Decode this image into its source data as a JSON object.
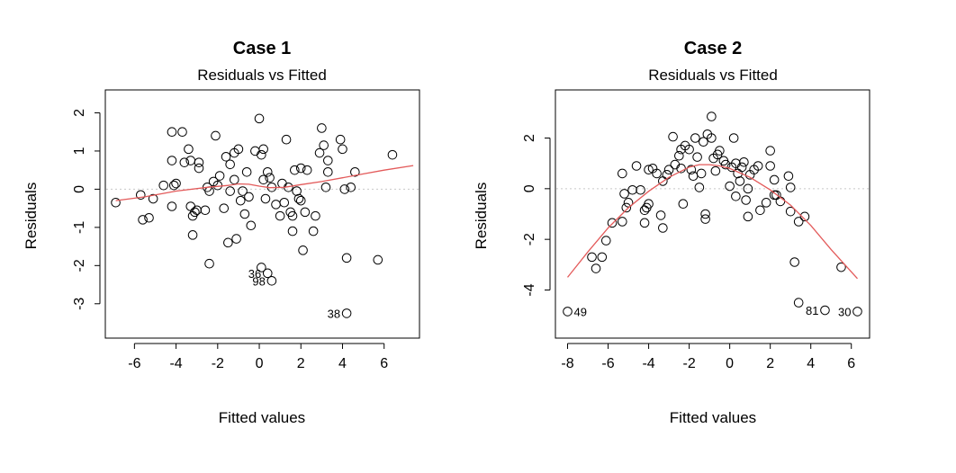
{
  "chart_data": [
    {
      "type": "scatter",
      "title": "Case 1",
      "subtitle": "Residuals vs Fitted",
      "xlabel": "Fitted values",
      "ylabel": "Residuals",
      "xlim": [
        -7.4,
        7.7
      ],
      "ylim": [
        -3.9,
        2.6
      ],
      "xticks": [
        "-6",
        "-4",
        "-2",
        "0",
        "2",
        "4",
        "6"
      ],
      "xtick_values": [
        -6,
        -4,
        -2,
        0,
        2,
        4,
        6
      ],
      "yticks": [
        "-3",
        "-2",
        "-1",
        "0",
        "1",
        "2"
      ],
      "ytick_values": [
        -3,
        -2,
        -1,
        0,
        1,
        2
      ],
      "points": [
        [
          -6.9,
          -0.35
        ],
        [
          -5.7,
          -0.15
        ],
        [
          -5.6,
          -0.8
        ],
        [
          -5.3,
          -0.75
        ],
        [
          -5.1,
          -0.25
        ],
        [
          -4.6,
          0.1
        ],
        [
          -4.2,
          1.5
        ],
        [
          -4.2,
          0.75
        ],
        [
          -4.1,
          0.1
        ],
        [
          -4.0,
          0.15
        ],
        [
          -4.2,
          -0.45
        ],
        [
          -3.7,
          1.5
        ],
        [
          -3.6,
          0.7
        ],
        [
          -3.4,
          1.05
        ],
        [
          -3.3,
          0.75
        ],
        [
          -3.3,
          -0.45
        ],
        [
          -3.2,
          -0.7
        ],
        [
          -3.1,
          -0.6
        ],
        [
          -3.0,
          -0.55
        ],
        [
          -3.2,
          -1.2
        ],
        [
          -2.9,
          0.7
        ],
        [
          -2.9,
          0.55
        ],
        [
          -2.6,
          -0.55
        ],
        [
          -2.5,
          0.05
        ],
        [
          -2.4,
          -0.05
        ],
        [
          -2.4,
          -1.95
        ],
        [
          -2.2,
          0.2
        ],
        [
          -2.1,
          1.4
        ],
        [
          -2.0,
          0.1
        ],
        [
          -1.9,
          0.35
        ],
        [
          -1.7,
          -0.5
        ],
        [
          -1.6,
          0.85
        ],
        [
          -1.5,
          -1.4
        ],
        [
          -1.4,
          0.65
        ],
        [
          -1.4,
          -0.05
        ],
        [
          -1.2,
          0.95
        ],
        [
          -1.2,
          0.25
        ],
        [
          -1.1,
          -1.3
        ],
        [
          -1.0,
          1.05
        ],
        [
          -0.9,
          -0.3
        ],
        [
          -0.8,
          -0.05
        ],
        [
          -0.7,
          -0.65
        ],
        [
          -0.6,
          0.45
        ],
        [
          -0.5,
          -0.2
        ],
        [
          -0.4,
          -0.95
        ],
        [
          -0.2,
          1.0
        ],
        [
          0.0,
          1.85
        ],
        [
          0.1,
          0.9
        ],
        [
          0.2,
          1.05
        ],
        [
          0.2,
          0.25
        ],
        [
          0.3,
          -0.25
        ],
        [
          0.4,
          0.45
        ],
        [
          0.5,
          0.3
        ],
        [
          0.6,
          0.05
        ],
        [
          0.8,
          -0.4
        ],
        [
          1.0,
          -0.7
        ],
        [
          1.1,
          0.15
        ],
        [
          1.2,
          -0.35
        ],
        [
          1.3,
          1.3
        ],
        [
          1.4,
          0.05
        ],
        [
          1.5,
          -0.6
        ],
        [
          1.6,
          -1.1
        ],
        [
          1.6,
          -0.7
        ],
        [
          1.7,
          0.5
        ],
        [
          1.8,
          -0.05
        ],
        [
          1.9,
          -0.25
        ],
        [
          2.0,
          -0.3
        ],
        [
          2.0,
          0.55
        ],
        [
          2.1,
          -1.6
        ],
        [
          2.2,
          -0.6
        ],
        [
          2.3,
          0.5
        ],
        [
          2.6,
          -1.1
        ],
        [
          2.7,
          -0.7
        ],
        [
          2.9,
          0.95
        ],
        [
          3.0,
          1.6
        ],
        [
          3.1,
          1.15
        ],
        [
          3.2,
          0.05
        ],
        [
          3.3,
          0.75
        ],
        [
          3.3,
          0.45
        ],
        [
          3.9,
          1.3
        ],
        [
          4.0,
          1.05
        ],
        [
          4.1,
          0.0
        ],
        [
          4.2,
          -1.8
        ],
        [
          4.4,
          0.05
        ],
        [
          4.6,
          0.45
        ],
        [
          5.7,
          -1.85
        ],
        [
          6.4,
          0.9
        ],
        [
          0.1,
          -2.05
        ],
        [
          0.4,
          -2.2
        ],
        [
          0.6,
          -2.4
        ],
        [
          4.2,
          -3.25
        ]
      ],
      "smooth": [
        [
          -6.9,
          -0.3
        ],
        [
          -5.5,
          -0.2
        ],
        [
          -4.0,
          -0.05
        ],
        [
          -2.5,
          0.05
        ],
        [
          -1.5,
          0.1
        ],
        [
          -1.0,
          0.14
        ],
        [
          -0.5,
          0.13
        ],
        [
          0.0,
          0.08
        ],
        [
          0.5,
          0.04
        ],
        [
          1.2,
          0.05
        ],
        [
          2.0,
          0.12
        ],
        [
          3.0,
          0.2
        ],
        [
          4.0,
          0.3
        ],
        [
          5.0,
          0.4
        ],
        [
          6.0,
          0.5
        ],
        [
          7.4,
          0.62
        ]
      ],
      "point_labels": [
        {
          "label": "36",
          "x": 0.4,
          "y": -2.2
        },
        {
          "label": "98",
          "x": 0.6,
          "y": -2.4
        },
        {
          "label": "38",
          "x": 4.2,
          "y": -3.25
        }
      ],
      "colors": {
        "points": "#000000",
        "smooth": "#e35a5a",
        "zero_line": "#c8c8c8"
      }
    },
    {
      "type": "scatter",
      "title": "Case 2",
      "subtitle": "Residuals vs Fitted",
      "xlabel": "Fitted values",
      "ylabel": "Residuals",
      "xlim": [
        -8.6,
        6.9
      ],
      "ylim": [
        -5.9,
        3.9
      ],
      "xticks": [
        "-8",
        "-6",
        "-4",
        "-2",
        "0",
        "2",
        "4",
        "6"
      ],
      "xtick_values": [
        -8,
        -6,
        -4,
        -2,
        0,
        2,
        4,
        6
      ],
      "yticks": [
        "-4",
        "-2",
        "0",
        "2"
      ],
      "ytick_values": [
        -4,
        -2,
        0,
        2
      ],
      "points": [
        [
          -8.0,
          -4.85
        ],
        [
          -6.8,
          -2.7
        ],
        [
          -6.6,
          -3.15
        ],
        [
          -6.3,
          -2.7
        ],
        [
          -6.1,
          -2.05
        ],
        [
          -5.8,
          -1.35
        ],
        [
          -5.3,
          -1.3
        ],
        [
          -5.2,
          -0.2
        ],
        [
          -5.1,
          -0.75
        ],
        [
          -5.0,
          -0.55
        ],
        [
          -4.8,
          -0.05
        ],
        [
          -5.3,
          0.6
        ],
        [
          -4.6,
          0.9
        ],
        [
          -4.4,
          -0.05
        ],
        [
          -4.2,
          -0.85
        ],
        [
          -4.2,
          -1.35
        ],
        [
          -4.1,
          -0.75
        ],
        [
          -4.0,
          -0.6
        ],
        [
          -4.0,
          0.75
        ],
        [
          -3.8,
          0.8
        ],
        [
          -3.6,
          0.6
        ],
        [
          -3.4,
          -1.05
        ],
        [
          -3.3,
          0.3
        ],
        [
          -3.3,
          -1.55
        ],
        [
          -3.1,
          0.55
        ],
        [
          -3.0,
          0.75
        ],
        [
          -2.8,
          2.05
        ],
        [
          -2.7,
          0.95
        ],
        [
          -2.5,
          1.3
        ],
        [
          -2.4,
          1.55
        ],
        [
          -2.4,
          0.8
        ],
        [
          -2.3,
          -0.6
        ],
        [
          -2.2,
          1.7
        ],
        [
          -2.0,
          1.55
        ],
        [
          -1.9,
          0.75
        ],
        [
          -1.8,
          0.5
        ],
        [
          -1.7,
          2.0
        ],
        [
          -1.6,
          1.25
        ],
        [
          -1.5,
          0.05
        ],
        [
          -1.4,
          0.6
        ],
        [
          -1.3,
          1.85
        ],
        [
          -1.2,
          -1.0
        ],
        [
          -1.2,
          -1.2
        ],
        [
          -1.1,
          2.15
        ],
        [
          -0.9,
          2.85
        ],
        [
          -0.9,
          2.0
        ],
        [
          -0.8,
          1.2
        ],
        [
          -0.7,
          0.7
        ],
        [
          -0.6,
          1.35
        ],
        [
          -0.5,
          1.5
        ],
        [
          -0.3,
          1.1
        ],
        [
          -0.2,
          0.95
        ],
        [
          0.0,
          0.1
        ],
        [
          0.1,
          0.85
        ],
        [
          0.2,
          2.0
        ],
        [
          0.3,
          1.0
        ],
        [
          0.3,
          -0.3
        ],
        [
          0.4,
          0.6
        ],
        [
          0.5,
          0.3
        ],
        [
          0.6,
          0.85
        ],
        [
          0.7,
          1.05
        ],
        [
          0.8,
          -0.45
        ],
        [
          0.9,
          0.0
        ],
        [
          0.9,
          -1.1
        ],
        [
          1.0,
          0.55
        ],
        [
          1.2,
          0.75
        ],
        [
          1.4,
          0.9
        ],
        [
          1.5,
          -0.85
        ],
        [
          1.8,
          -0.55
        ],
        [
          2.0,
          0.9
        ],
        [
          2.0,
          1.5
        ],
        [
          2.2,
          0.35
        ],
        [
          2.2,
          -0.25
        ],
        [
          2.3,
          -0.25
        ],
        [
          2.5,
          -0.5
        ],
        [
          2.9,
          0.5
        ],
        [
          3.0,
          0.05
        ],
        [
          3.0,
          -0.9
        ],
        [
          3.2,
          -2.9
        ],
        [
          3.4,
          -1.3
        ],
        [
          3.4,
          -4.5
        ],
        [
          3.7,
          -1.1
        ],
        [
          4.7,
          -4.8
        ],
        [
          5.5,
          -3.1
        ],
        [
          6.3,
          -4.85
        ]
      ],
      "smooth": [
        [
          -8.0,
          -3.5
        ],
        [
          -7.0,
          -2.5
        ],
        [
          -6.0,
          -1.55
        ],
        [
          -5.0,
          -0.75
        ],
        [
          -4.0,
          -0.1
        ],
        [
          -3.0,
          0.45
        ],
        [
          -2.0,
          0.85
        ],
        [
          -1.5,
          0.95
        ],
        [
          -1.0,
          0.95
        ],
        [
          -0.5,
          0.9
        ],
        [
          0.0,
          0.8
        ],
        [
          1.0,
          0.45
        ],
        [
          2.0,
          -0.05
        ],
        [
          3.0,
          -0.65
        ],
        [
          4.0,
          -1.45
        ],
        [
          5.0,
          -2.4
        ],
        [
          6.3,
          -3.55
        ]
      ],
      "point_labels": [
        {
          "label": "49",
          "x": -8.0,
          "y": -4.85
        },
        {
          "label": "81",
          "x": 4.7,
          "y": -4.8
        },
        {
          "label": "30",
          "x": 6.3,
          "y": -4.85
        }
      ],
      "colors": {
        "points": "#000000",
        "smooth": "#e35a5a",
        "zero_line": "#c8c8c8"
      }
    }
  ]
}
